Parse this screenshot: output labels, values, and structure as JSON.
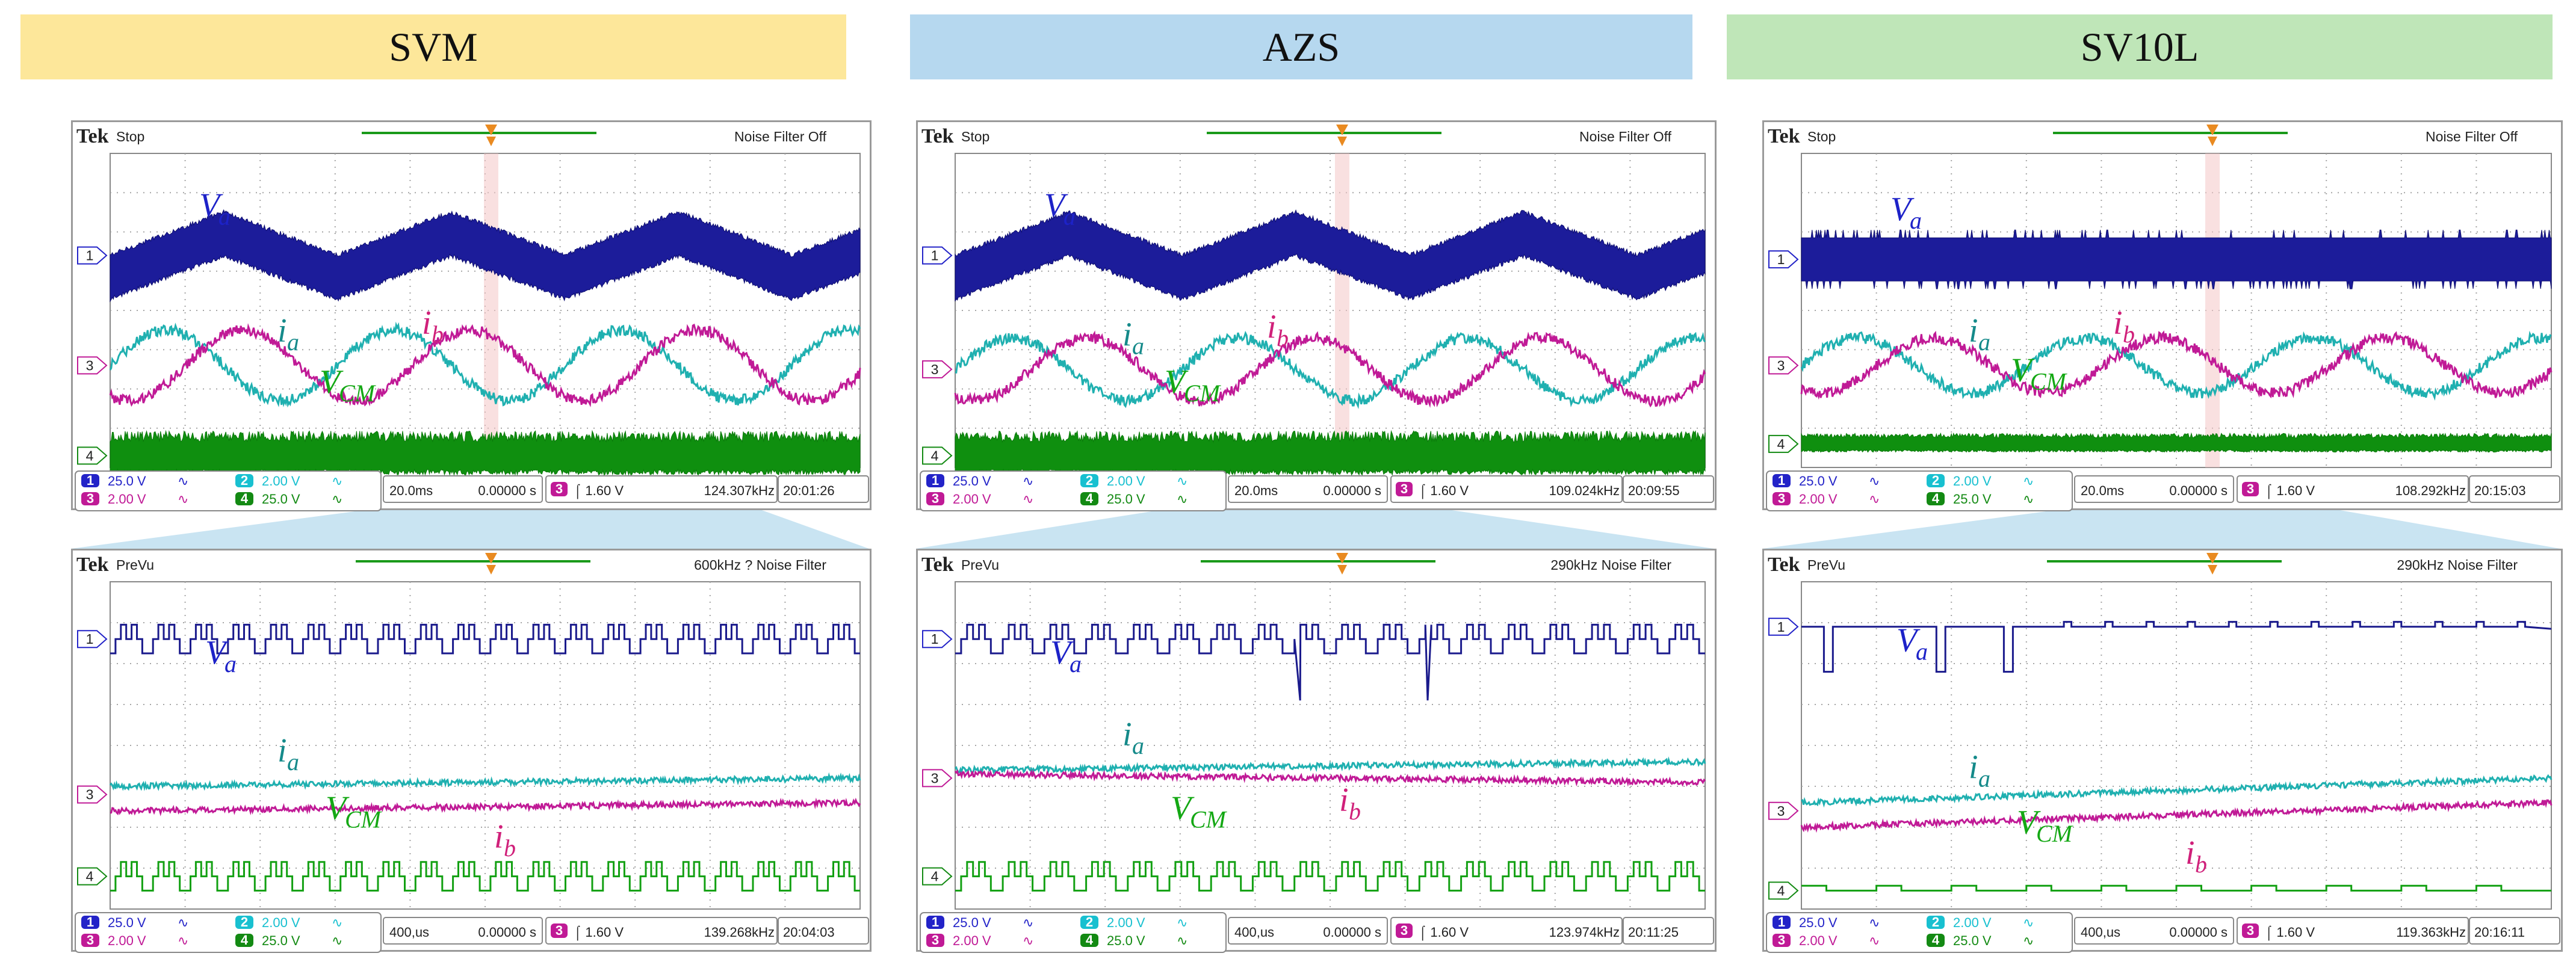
{
  "headers": [
    {
      "label": "SVM",
      "color": "#fde79a"
    },
    {
      "label": "AZS",
      "color": "#b6d8ef"
    },
    {
      "label": "SV10L",
      "color": "#bfe6b8"
    }
  ],
  "colors": {
    "va": "#1a1a8c",
    "ia": "#1fb0b0",
    "ib": "#c01a96",
    "vcm": "#12a012",
    "label_va": "#1d22c8",
    "label_ia": "#158a8a",
    "label_ib": "#d0207a",
    "label_vcm": "#14a814",
    "grid": "#a6a6a6",
    "cursor": "#e98a20"
  },
  "common": {
    "brand": "Tek",
    "channels": [
      {
        "num": "1",
        "scale": "25.0 V",
        "symbol": "∿",
        "color": "#2323c8"
      },
      {
        "num": "2",
        "scale": "2.00 V",
        "symbol": "∿",
        "color": "#18c0d0"
      },
      {
        "num": "3",
        "scale": "2.00 V",
        "symbol": "∿",
        "color": "#c01a96"
      },
      {
        "num": "4",
        "scale": "25.0 V",
        "symbol": "∿",
        "color": "#138a13"
      }
    ],
    "trigger_channel": "3",
    "trigger_level": "⌠ 1.60 V",
    "position": "0.00000 s",
    "markers": [
      "1",
      "3",
      "4"
    ],
    "trace_labels": {
      "va": "V",
      "va_sub": "a",
      "ia": "i",
      "ia_sub": "a",
      "ib": "i",
      "ib_sub": "b",
      "vcm": "V",
      "vcm_sub": "CM"
    }
  },
  "chart_data": [
    {
      "type": "line",
      "column": "SVM",
      "view": "Stop",
      "status": "Stop",
      "filter": "Noise Filter Off",
      "timebase": "20.0ms",
      "frequency": "124.307kHz",
      "time": "20:01:26",
      "x_divisions": 10,
      "y_divisions": 8,
      "series": [
        {
          "name": "Va",
          "kind": "envelope",
          "center_div": 5.4,
          "amplitude_div": 0.55,
          "band_div": 1.0,
          "cycles": 3.3
        },
        {
          "name": "ia",
          "kind": "sine",
          "center_div": 2.6,
          "amplitude_div": 0.9,
          "cycles": 3.3,
          "phase": 0.0
        },
        {
          "name": "ib",
          "kind": "sine",
          "center_div": 2.6,
          "amplitude_div": 0.9,
          "cycles": 3.3,
          "phase": -2.09
        },
        {
          "name": "VCM",
          "kind": "noise_band",
          "center_div": 0.3,
          "band_div": 0.7
        }
      ]
    },
    {
      "type": "line",
      "column": "AZS",
      "view": "Stop",
      "status": "Stop",
      "filter": "Noise Filter Off",
      "timebase": "20.0ms",
      "frequency": "109.024kHz",
      "time": "20:09:55",
      "x_divisions": 10,
      "y_divisions": 8,
      "series": [
        {
          "name": "Va",
          "kind": "envelope",
          "center_div": 5.4,
          "amplitude_div": 0.55,
          "band_div": 1.0,
          "cycles": 3.3
        },
        {
          "name": "ia",
          "kind": "sine",
          "center_div": 2.5,
          "amplitude_div": 0.8,
          "cycles": 3.3,
          "phase": 0.0
        },
        {
          "name": "ib",
          "kind": "sine",
          "center_div": 2.5,
          "amplitude_div": 0.8,
          "cycles": 3.3,
          "phase": -2.09
        },
        {
          "name": "VCM",
          "kind": "noise_band",
          "center_div": 0.3,
          "band_div": 0.7
        }
      ]
    },
    {
      "type": "line",
      "column": "SV10L",
      "view": "Stop",
      "status": "Stop",
      "filter": "Noise Filter Off",
      "timebase": "20.0ms",
      "frequency": "108.292kHz",
      "time": "20:15:03",
      "x_divisions": 10,
      "y_divisions": 8,
      "series": [
        {
          "name": "Va",
          "kind": "flat_band",
          "center_div": 5.3,
          "band_div": 1.1
        },
        {
          "name": "ia",
          "kind": "sine",
          "center_div": 2.6,
          "amplitude_div": 0.7,
          "cycles": 3.3,
          "phase": 0.0
        },
        {
          "name": "ib",
          "kind": "sine",
          "center_div": 2.6,
          "amplitude_div": 0.7,
          "cycles": 3.3,
          "phase": -2.09
        },
        {
          "name": "VCM",
          "kind": "noise_band",
          "center_div": 0.6,
          "band_div": 0.3
        }
      ]
    },
    {
      "type": "line",
      "column": "SVM",
      "view": "PreVu",
      "status": "PreVu",
      "filter": "600kHz ?  Noise Filter",
      "timebase": "400,us",
      "frequency": "139.268kHz",
      "time": "20:04:03",
      "x_divisions": 10,
      "y_divisions": 8,
      "series": [
        {
          "name": "Va",
          "kind": "steps",
          "center_div": 6.6,
          "amplitude_div": 0.35,
          "pulses": 20
        },
        {
          "name": "ia",
          "kind": "flat_noise",
          "center_div": 3.0,
          "slope_div": 0.2
        },
        {
          "name": "ib",
          "kind": "flat_noise",
          "center_div": 2.4,
          "slope_div": 0.2
        },
        {
          "name": "VCM",
          "kind": "steps",
          "center_div": 0.8,
          "amplitude_div": 0.35,
          "pulses": 20
        }
      ]
    },
    {
      "type": "line",
      "column": "AZS",
      "view": "PreVu",
      "status": "PreVu",
      "filter": "290kHz   Noise Filter",
      "timebase": "400,us",
      "frequency": "123.974kHz",
      "time": "20:11:25",
      "x_divisions": 10,
      "y_divisions": 8,
      "series": [
        {
          "name": "Va",
          "kind": "steps_dips",
          "center_div": 6.6,
          "amplitude_div": 0.35,
          "pulses": 18,
          "dips": [
            0.46,
            0.63
          ],
          "dip_depth_div": 1.5
        },
        {
          "name": "ia",
          "kind": "flat_noise",
          "center_div": 3.4,
          "slope_div": 0.2
        },
        {
          "name": "ib",
          "kind": "flat_noise",
          "center_div": 3.3,
          "slope_div": -0.2
        },
        {
          "name": "VCM",
          "kind": "steps",
          "center_div": 0.8,
          "amplitude_div": 0.35,
          "pulses": 18
        }
      ]
    },
    {
      "type": "line",
      "column": "SV10L",
      "view": "PreVu",
      "status": "PreVu",
      "filter": "290kHz  Noise Filter",
      "timebase": "400,us",
      "frequency": "119.363kHz",
      "time": "20:16:11",
      "x_divisions": 10,
      "y_divisions": 8,
      "series": [
        {
          "name": "Va",
          "kind": "flat_dips",
          "center_div": 6.9,
          "dips": [
            0.03,
            0.18,
            0.27
          ],
          "dip_depth_div": 1.1
        },
        {
          "name": "ia",
          "kind": "flat_noise",
          "center_div": 2.6,
          "slope_div": 0.6
        },
        {
          "name": "ib",
          "kind": "flat_noise",
          "center_div": 2.0,
          "slope_div": 0.6
        },
        {
          "name": "VCM",
          "kind": "flat_small_steps",
          "center_div": 0.45
        }
      ]
    }
  ]
}
